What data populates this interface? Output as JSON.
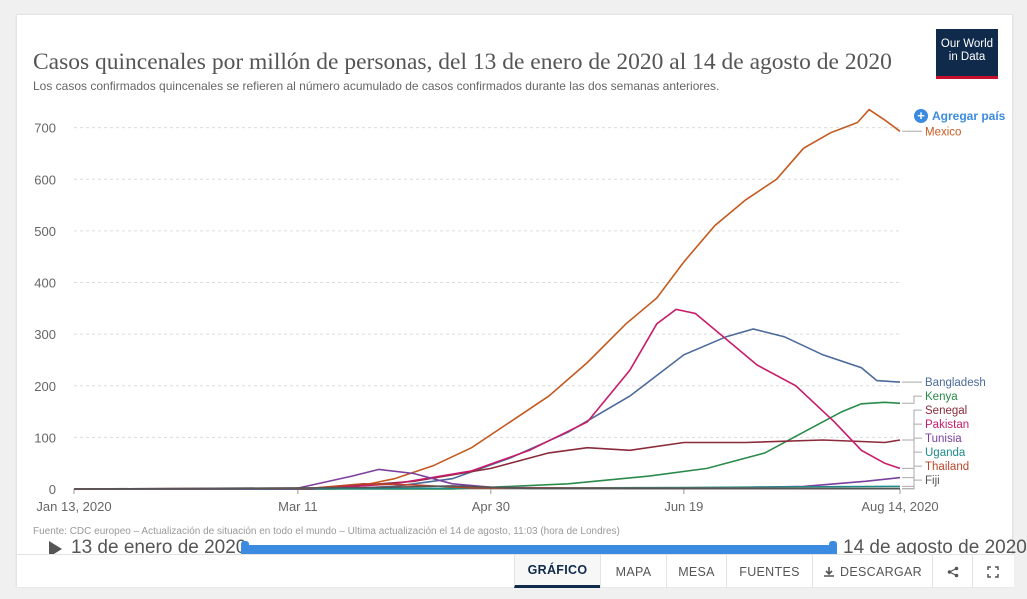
{
  "header": {
    "title": "Casos quincenales por millón de personas, del 13 de enero de 2020 al 14 de agosto de 2020",
    "subtitle": "Los casos confirmados quincenales se refieren al número acumulado de casos confirmados durante las dos semanas anteriores.",
    "logo_line1": "Our World",
    "logo_line2": "in Data",
    "add_country": "Agregar país"
  },
  "footnote": "Fuente: CDC europeo – Actualización de situación en todo el mundo – Última actualización el 14 de agosto, 11:03 (hora de Londres)",
  "timeline": {
    "start_label": "13 de enero de 2020",
    "end_label": "14 de agosto de 2020"
  },
  "tabs": [
    {
      "label": "GRÁFICO",
      "active": true
    },
    {
      "label": "MAPA"
    },
    {
      "label": "MESA"
    },
    {
      "label": "FUENTES"
    },
    {
      "label": "DESCARGAR"
    }
  ],
  "icons": [
    "plus-circle-icon",
    "play-icon",
    "download-icon",
    "share-icon",
    "fullscreen-icon"
  ],
  "colors": {
    "accent": "#3b8be0",
    "logo_bg": "#0f2a4a",
    "logo_bar": "#c8102e"
  },
  "chart_data": {
    "type": "line",
    "title": "Casos quincenales por millón de personas, del 13 de enero de 2020 al 14 de agosto de 2020",
    "xlabel": "",
    "ylabel": "",
    "x_ticks": [
      "Jan 13, 2020",
      "Mar 11",
      "Apr 30",
      "Jun 19",
      "Aug 14, 2020"
    ],
    "y_ticks": [
      0,
      100,
      200,
      300,
      400,
      500,
      600,
      700
    ],
    "xlim": [
      "2020-01-13",
      "2020-08-14"
    ],
    "ylim": [
      0,
      740
    ],
    "grid": "horizontal dashed",
    "legend": "right, inline end labels",
    "series": [
      {
        "name": "Mexico",
        "color": "#c55a1f",
        "points": [
          [
            "2020-01-13",
            0
          ],
          [
            "2020-03-11",
            0
          ],
          [
            "2020-03-25",
            3
          ],
          [
            "2020-04-05",
            20
          ],
          [
            "2020-04-15",
            45
          ],
          [
            "2020-04-25",
            80
          ],
          [
            "2020-05-05",
            130
          ],
          [
            "2020-05-15",
            180
          ],
          [
            "2020-05-25",
            245
          ],
          [
            "2020-06-04",
            320
          ],
          [
            "2020-06-12",
            370
          ],
          [
            "2020-06-19",
            440
          ],
          [
            "2020-06-27",
            510
          ],
          [
            "2020-07-05",
            560
          ],
          [
            "2020-07-13",
            600
          ],
          [
            "2020-07-20",
            660
          ],
          [
            "2020-07-27",
            690
          ],
          [
            "2020-08-03",
            710
          ],
          [
            "2020-08-06",
            735
          ],
          [
            "2020-08-10",
            715
          ],
          [
            "2020-08-14",
            693
          ]
        ]
      },
      {
        "name": "Bangladesh",
        "color": "#4c6a9c",
        "points": [
          [
            "2020-01-13",
            0
          ],
          [
            "2020-03-20",
            0
          ],
          [
            "2020-04-05",
            5
          ],
          [
            "2020-04-20",
            20
          ],
          [
            "2020-05-05",
            60
          ],
          [
            "2020-05-20",
            110
          ],
          [
            "2020-06-05",
            180
          ],
          [
            "2020-06-19",
            260
          ],
          [
            "2020-06-30",
            295
          ],
          [
            "2020-07-07",
            310
          ],
          [
            "2020-07-15",
            295
          ],
          [
            "2020-07-25",
            260
          ],
          [
            "2020-08-04",
            235
          ],
          [
            "2020-08-08",
            210
          ],
          [
            "2020-08-14",
            207
          ]
        ]
      },
      {
        "name": "Kenya",
        "color": "#2a8a4a",
        "points": [
          [
            "2020-01-13",
            0
          ],
          [
            "2020-04-20",
            0
          ],
          [
            "2020-05-20",
            10
          ],
          [
            "2020-06-10",
            25
          ],
          [
            "2020-06-25",
            40
          ],
          [
            "2020-07-10",
            70
          ],
          [
            "2020-07-20",
            110
          ],
          [
            "2020-07-30",
            150
          ],
          [
            "2020-08-04",
            165
          ],
          [
            "2020-08-10",
            168
          ],
          [
            "2020-08-14",
            166
          ]
        ]
      },
      {
        "name": "Senegal",
        "color": "#8b2a3a",
        "points": [
          [
            "2020-01-13",
            0
          ],
          [
            "2020-03-15",
            0
          ],
          [
            "2020-04-10",
            15
          ],
          [
            "2020-04-30",
            40
          ],
          [
            "2020-05-15",
            70
          ],
          [
            "2020-05-25",
            80
          ],
          [
            "2020-06-05",
            75
          ],
          [
            "2020-06-19",
            90
          ],
          [
            "2020-07-05",
            90
          ],
          [
            "2020-07-25",
            95
          ],
          [
            "2020-08-04",
            92
          ],
          [
            "2020-08-10",
            90
          ],
          [
            "2020-08-14",
            95
          ]
        ]
      },
      {
        "name": "Pakistan",
        "color": "#c81c6a",
        "points": [
          [
            "2020-01-13",
            0
          ],
          [
            "2020-03-15",
            0
          ],
          [
            "2020-04-05",
            10
          ],
          [
            "2020-04-25",
            35
          ],
          [
            "2020-05-10",
            75
          ],
          [
            "2020-05-25",
            130
          ],
          [
            "2020-06-05",
            230
          ],
          [
            "2020-06-12",
            320
          ],
          [
            "2020-06-17",
            348
          ],
          [
            "2020-06-22",
            340
          ],
          [
            "2020-06-30",
            290
          ],
          [
            "2020-07-08",
            240
          ],
          [
            "2020-07-18",
            200
          ],
          [
            "2020-07-28",
            130
          ],
          [
            "2020-08-04",
            75
          ],
          [
            "2020-08-10",
            50
          ],
          [
            "2020-08-14",
            40
          ]
        ]
      },
      {
        "name": "Tunisia",
        "color": "#7b3f9e",
        "points": [
          [
            "2020-01-13",
            0
          ],
          [
            "2020-03-10",
            0
          ],
          [
            "2020-03-25",
            25
          ],
          [
            "2020-04-01",
            38
          ],
          [
            "2020-04-10",
            30
          ],
          [
            "2020-04-20",
            10
          ],
          [
            "2020-05-01",
            3
          ],
          [
            "2020-06-19",
            1
          ],
          [
            "2020-07-20",
            5
          ],
          [
            "2020-08-05",
            15
          ],
          [
            "2020-08-14",
            22
          ]
        ]
      },
      {
        "name": "Uganda",
        "color": "#1f8a8a",
        "points": [
          [
            "2020-01-13",
            0
          ],
          [
            "2020-04-01",
            1
          ],
          [
            "2020-05-15",
            2
          ],
          [
            "2020-06-19",
            3
          ],
          [
            "2020-07-15",
            4
          ],
          [
            "2020-08-14",
            5
          ]
        ]
      },
      {
        "name": "Thailand",
        "color": "#b8452a",
        "points": [
          [
            "2020-01-13",
            0
          ],
          [
            "2020-03-15",
            2
          ],
          [
            "2020-03-28",
            10
          ],
          [
            "2020-04-10",
            8
          ],
          [
            "2020-04-25",
            2
          ],
          [
            "2020-08-14",
            0.5
          ]
        ]
      },
      {
        "name": "Fiji",
        "color": "#555555",
        "points": [
          [
            "2020-01-13",
            0
          ],
          [
            "2020-04-01",
            3
          ],
          [
            "2020-04-20",
            6
          ],
          [
            "2020-05-10",
            1
          ],
          [
            "2020-08-14",
            0.5
          ]
        ]
      }
    ]
  }
}
